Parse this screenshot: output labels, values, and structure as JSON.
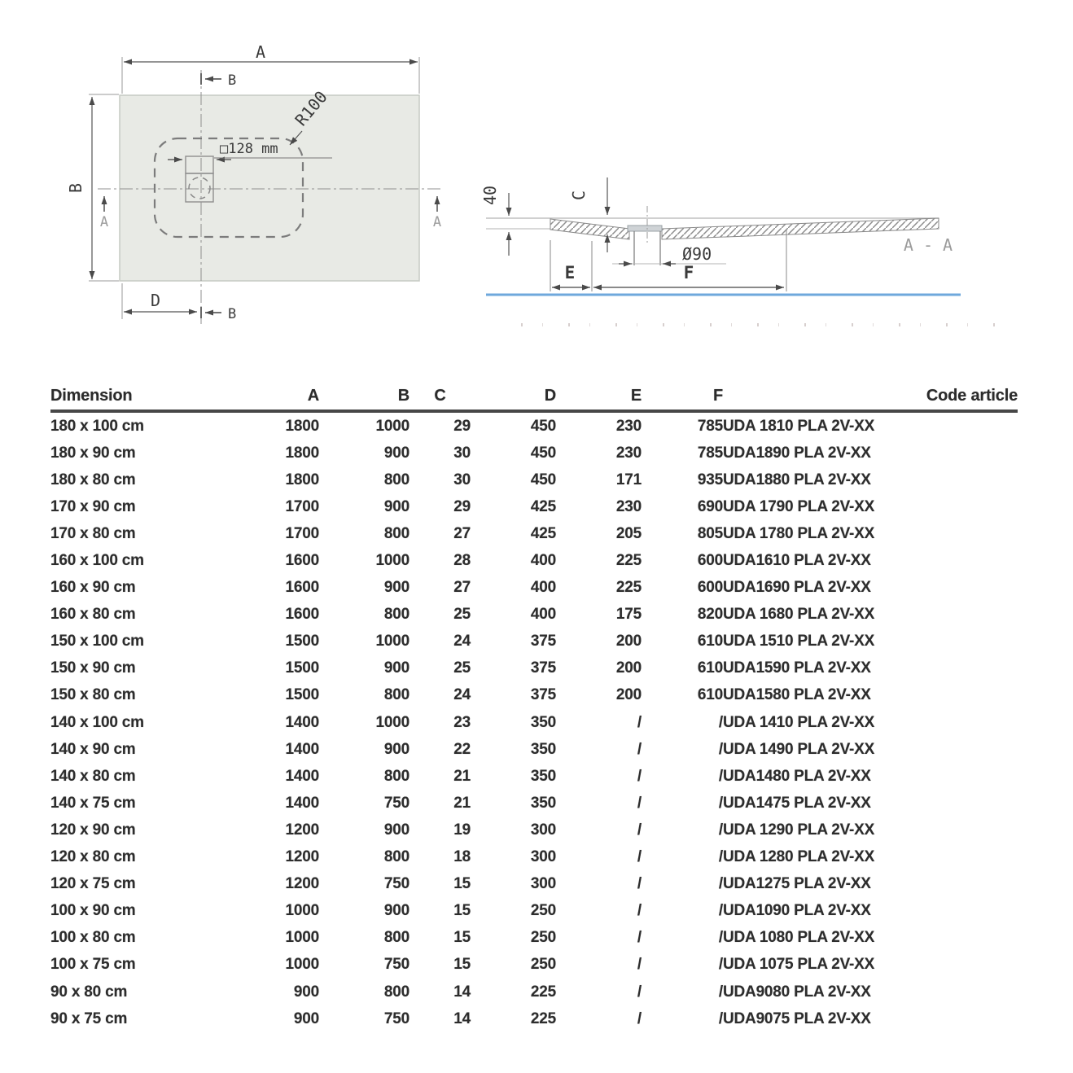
{
  "drawing": {
    "plan": {
      "dim_a": "A",
      "dim_b": "B",
      "dim_d": "D",
      "cut_b_top": "B",
      "cut_b_bottom": "B",
      "cut_a_left": "A",
      "cut_a_right": "A",
      "radius_label": "R100",
      "drain_label": "□128 mm"
    },
    "section": {
      "height_label": "40",
      "depth_label": "C",
      "diameter_label": "Ø90",
      "dim_e": "E",
      "dim_f": "F",
      "view_label": "A - A"
    },
    "colors": {
      "tray_fill": "#e8eae5",
      "ground_line": "#6fa8dc"
    }
  },
  "table": {
    "headers": [
      "Dimension",
      "A",
      "B",
      "C",
      "D",
      "E",
      "F",
      "Code article"
    ],
    "rows": [
      [
        "180 x 100 cm",
        "1800",
        "1000",
        "29",
        "450",
        "230",
        "785",
        "UDA 1810 PLA 2V-XX"
      ],
      [
        "180 x 90 cm",
        "1800",
        "900",
        "30",
        "450",
        "230",
        "785",
        "UDA1890 PLA 2V-XX"
      ],
      [
        "180 x 80 cm",
        "1800",
        "800",
        "30",
        "450",
        "171",
        "935",
        "UDA1880 PLA 2V-XX"
      ],
      [
        "170 x 90 cm",
        "1700",
        "900",
        "29",
        "425",
        "230",
        "690",
        "UDA 1790 PLA 2V-XX"
      ],
      [
        "170 x 80 cm",
        "1700",
        "800",
        "27",
        "425",
        "205",
        "805",
        "UDA 1780 PLA 2V-XX"
      ],
      [
        "160 x 100 cm",
        "1600",
        "1000",
        "28",
        "400",
        "225",
        "600",
        "UDA1610 PLA 2V-XX"
      ],
      [
        "160 x 90 cm",
        "1600",
        "900",
        "27",
        "400",
        "225",
        "600",
        "UDA1690 PLA 2V-XX"
      ],
      [
        "160 x 80 cm",
        "1600",
        "800",
        "25",
        "400",
        "175",
        "820",
        "UDA 1680 PLA 2V-XX"
      ],
      [
        "150 x 100 cm",
        "1500",
        "1000",
        "24",
        "375",
        "200",
        "610",
        "UDA 1510 PLA 2V-XX"
      ],
      [
        "150 x 90 cm",
        "1500",
        "900",
        "25",
        "375",
        "200",
        "610",
        "UDA1590 PLA 2V-XX"
      ],
      [
        "150 x 80 cm",
        "1500",
        "800",
        "24",
        "375",
        "200",
        "610",
        "UDA1580 PLA 2V-XX"
      ],
      [
        "140 x 100 cm",
        "1400",
        "1000",
        "23",
        "350",
        "/",
        "/",
        "UDA 1410 PLA 2V-XX"
      ],
      [
        "140 x 90 cm",
        "1400",
        "900",
        "22",
        "350",
        "/",
        "/",
        "UDA 1490 PLA 2V-XX"
      ],
      [
        "140 x 80 cm",
        "1400",
        "800",
        "21",
        "350",
        "/",
        "/",
        "UDA1480 PLA 2V-XX"
      ],
      [
        "140 x 75 cm",
        "1400",
        "750",
        "21",
        "350",
        "/",
        "/",
        "UDA1475 PLA 2V-XX"
      ],
      [
        "120 x 90 cm",
        "1200",
        "900",
        "19",
        "300",
        "/",
        "/",
        "UDA 1290 PLA 2V-XX"
      ],
      [
        "120 x 80 cm",
        "1200",
        "800",
        "18",
        "300",
        "/",
        "/",
        "UDA 1280 PLA 2V-XX"
      ],
      [
        "120 x 75 cm",
        "1200",
        "750",
        "15",
        "300",
        "/",
        "/",
        "UDA1275 PLA 2V-XX"
      ],
      [
        "100 x 90 cm",
        "1000",
        "900",
        "15",
        "250",
        "/",
        "/",
        "UDA1090 PLA 2V-XX"
      ],
      [
        "100 x 80 cm",
        "1000",
        "800",
        "15",
        "250",
        "/",
        "/",
        "UDA 1080 PLA 2V-XX"
      ],
      [
        "100 x 75 cm",
        "1000",
        "750",
        "15",
        "250",
        "/",
        "/",
        "UDA 1075 PLA 2V-XX"
      ],
      [
        "90 x 80 cm",
        "900",
        "800",
        "14",
        "225",
        "/",
        "/",
        "UDA9080 PLA 2V-XX"
      ],
      [
        "90 x 75 cm",
        "900",
        "750",
        "14",
        "225",
        "/",
        "/",
        "UDA9075 PLA 2V-XX"
      ]
    ]
  }
}
